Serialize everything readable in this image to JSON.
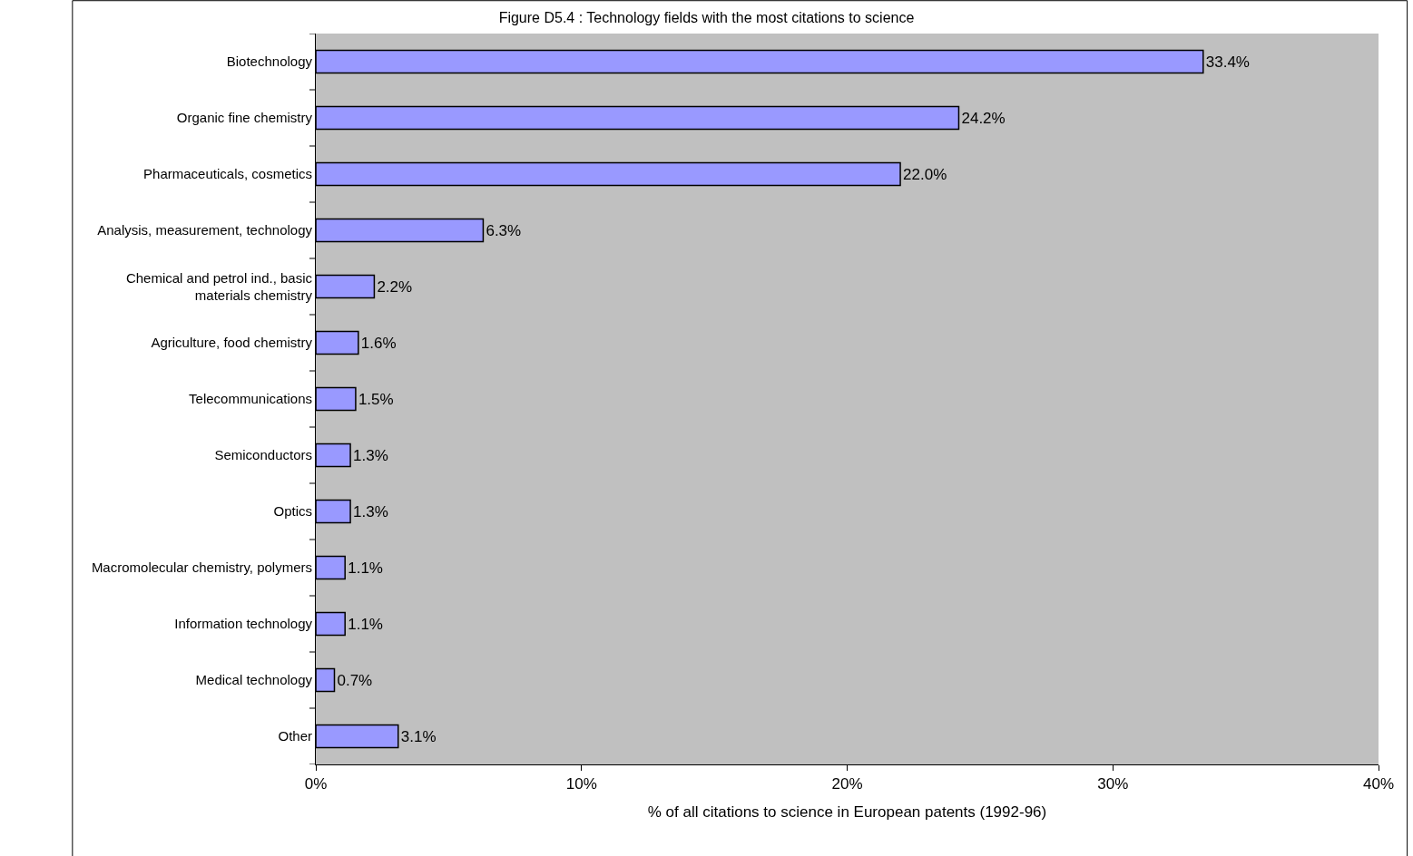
{
  "chart_data": {
    "type": "bar",
    "orientation": "horizontal",
    "title": "Figure D5.4 : Technology fields with the most citations to science",
    "xlabel": "% of all citations to science in European patents (1992-96)",
    "categories": [
      "Biotechnology",
      "Organic fine chemistry",
      "Pharmaceuticals, cosmetics",
      "Analysis, measurement, technology",
      "Chemical and petrol ind., basic materials chemistry",
      "Agriculture, food chemistry",
      "Telecommunications",
      "Semiconductors",
      "Optics",
      "Macromolecular chemistry, polymers",
      "Information technology",
      "Medical technology",
      "Other"
    ],
    "values": [
      33.4,
      24.2,
      22.0,
      6.3,
      2.2,
      1.6,
      1.5,
      1.3,
      1.3,
      1.1,
      1.1,
      0.7,
      3.1
    ],
    "value_labels": [
      "33.4%",
      "24.2%",
      "22.0%",
      "6.3%",
      "2.2%",
      "1.6%",
      "1.5%",
      "1.3%",
      "1.3%",
      "1.1%",
      "1.1%",
      "0.7%",
      "3.1%"
    ],
    "color": "#9999ff",
    "xlim": [
      0,
      40
    ],
    "xticks": [
      {
        "value": 0,
        "label": "0%"
      },
      {
        "value": 10,
        "label": "10%"
      },
      {
        "value": 20,
        "label": "20%"
      },
      {
        "value": 30,
        "label": "30%"
      },
      {
        "value": 40,
        "label": "40%"
      }
    ],
    "grid": false,
    "legend": false
  }
}
